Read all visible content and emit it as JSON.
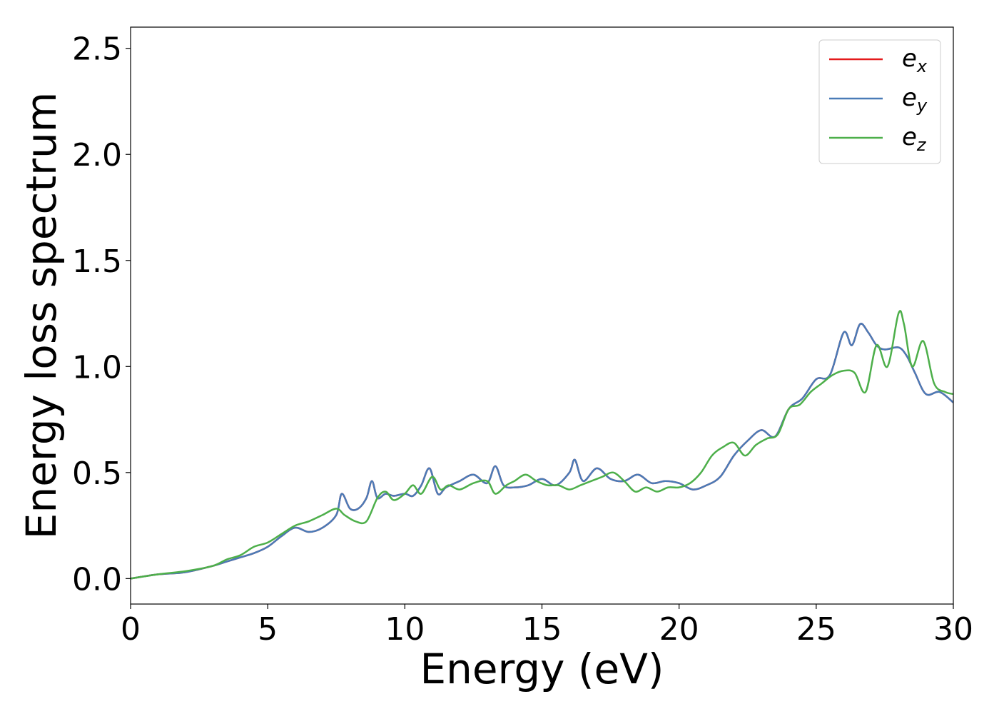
{
  "chart_data": {
    "type": "line",
    "xlabel": "Energy (eV)",
    "ylabel": "Energy loss spectrum",
    "xlim": [
      0,
      30
    ],
    "ylim": [
      -0.12,
      2.6
    ],
    "x_ticks": [
      "0",
      "5",
      "10",
      "15",
      "20",
      "25",
      "30"
    ],
    "y_ticks": [
      "0.0",
      "0.5",
      "1.0",
      "1.5",
      "2.0",
      "2.5"
    ],
    "grid": false,
    "legend_position": "top-right",
    "series": [
      {
        "name": "e",
        "name_subscript": "x",
        "color": "#e41a1c",
        "x": [
          0,
          1,
          2,
          3,
          3.5,
          4,
          4.5,
          5,
          5.5,
          6,
          6.5,
          7,
          7.5,
          7.7,
          8,
          8.3,
          8.6,
          8.8,
          9,
          9.3,
          9.6,
          10,
          10.3,
          10.6,
          10.9,
          11.2,
          11.5,
          12,
          12.5,
          13,
          13.3,
          13.6,
          14,
          14.5,
          15,
          15.5,
          16,
          16.2,
          16.5,
          17,
          17.5,
          18,
          18.5,
          19,
          19.5,
          20,
          20.5,
          21,
          21.5,
          22,
          22.5,
          23,
          23.5,
          24,
          24.5,
          25,
          25.5,
          26,
          26.3,
          26.6,
          26.9,
          27.2,
          27.5,
          28,
          28.3,
          28.6,
          29,
          29.5,
          30
        ],
        "y": [
          0,
          0.02,
          0.03,
          0.06,
          0.08,
          0.1,
          0.12,
          0.15,
          0.2,
          0.24,
          0.22,
          0.24,
          0.3,
          0.4,
          0.33,
          0.33,
          0.38,
          0.46,
          0.38,
          0.4,
          0.39,
          0.4,
          0.39,
          0.44,
          0.52,
          0.4,
          0.43,
          0.46,
          0.49,
          0.45,
          0.53,
          0.44,
          0.43,
          0.44,
          0.47,
          0.44,
          0.5,
          0.56,
          0.46,
          0.52,
          0.47,
          0.46,
          0.49,
          0.45,
          0.46,
          0.45,
          0.42,
          0.44,
          0.48,
          0.58,
          0.65,
          0.7,
          0.67,
          0.8,
          0.85,
          0.94,
          0.96,
          1.16,
          1.1,
          1.2,
          1.16,
          1.1,
          1.08,
          1.09,
          1.05,
          0.97,
          0.87,
          0.88,
          0.83
        ]
      },
      {
        "name": "e",
        "name_subscript": "y",
        "color": "#4a7bb7",
        "x": [
          0,
          1,
          2,
          3,
          3.5,
          4,
          4.5,
          5,
          5.5,
          6,
          6.5,
          7,
          7.5,
          7.7,
          8,
          8.3,
          8.6,
          8.8,
          9,
          9.3,
          9.6,
          10,
          10.3,
          10.6,
          10.9,
          11.2,
          11.5,
          12,
          12.5,
          13,
          13.3,
          13.6,
          14,
          14.5,
          15,
          15.5,
          16,
          16.2,
          16.5,
          17,
          17.5,
          18,
          18.5,
          19,
          19.5,
          20,
          20.5,
          21,
          21.5,
          22,
          22.5,
          23,
          23.5,
          24,
          24.5,
          25,
          25.5,
          26,
          26.3,
          26.6,
          26.9,
          27.2,
          27.5,
          28,
          28.3,
          28.6,
          29,
          29.5,
          30
        ],
        "y": [
          0,
          0.02,
          0.03,
          0.06,
          0.08,
          0.1,
          0.12,
          0.15,
          0.2,
          0.24,
          0.22,
          0.24,
          0.3,
          0.4,
          0.33,
          0.33,
          0.38,
          0.46,
          0.38,
          0.4,
          0.39,
          0.4,
          0.39,
          0.44,
          0.52,
          0.4,
          0.43,
          0.46,
          0.49,
          0.45,
          0.53,
          0.44,
          0.43,
          0.44,
          0.47,
          0.44,
          0.5,
          0.56,
          0.46,
          0.52,
          0.47,
          0.46,
          0.49,
          0.45,
          0.46,
          0.45,
          0.42,
          0.44,
          0.48,
          0.58,
          0.65,
          0.7,
          0.67,
          0.8,
          0.85,
          0.94,
          0.96,
          1.16,
          1.1,
          1.2,
          1.16,
          1.1,
          1.08,
          1.09,
          1.05,
          0.97,
          0.87,
          0.88,
          0.83
        ]
      },
      {
        "name": "e",
        "name_subscript": "z",
        "color": "#4daf4a",
        "x": [
          0,
          1,
          2,
          3,
          3.5,
          4,
          4.5,
          5,
          5.5,
          6,
          6.5,
          7,
          7.5,
          7.8,
          8.2,
          8.6,
          9,
          9.3,
          9.6,
          10,
          10.3,
          10.6,
          11,
          11.3,
          11.6,
          12,
          12.5,
          13,
          13.3,
          13.7,
          14,
          14.4,
          14.8,
          15.2,
          15.6,
          16,
          16.4,
          16.8,
          17.2,
          17.6,
          18,
          18.4,
          18.8,
          19.2,
          19.6,
          20,
          20.4,
          20.8,
          21.2,
          21.6,
          22,
          22.4,
          22.8,
          23.2,
          23.6,
          24,
          24.4,
          24.8,
          25.2,
          25.6,
          26,
          26.4,
          26.8,
          27.2,
          27.6,
          28,
          28.2,
          28.5,
          28.9,
          29.3,
          29.7,
          30
        ],
        "y": [
          0,
          0.02,
          0.035,
          0.06,
          0.09,
          0.11,
          0.15,
          0.17,
          0.21,
          0.25,
          0.27,
          0.3,
          0.33,
          0.3,
          0.27,
          0.27,
          0.38,
          0.41,
          0.37,
          0.4,
          0.44,
          0.4,
          0.48,
          0.42,
          0.44,
          0.42,
          0.45,
          0.46,
          0.4,
          0.44,
          0.46,
          0.49,
          0.46,
          0.44,
          0.44,
          0.42,
          0.44,
          0.46,
          0.48,
          0.5,
          0.46,
          0.41,
          0.43,
          0.41,
          0.43,
          0.43,
          0.45,
          0.5,
          0.58,
          0.62,
          0.64,
          0.58,
          0.63,
          0.66,
          0.68,
          0.8,
          0.82,
          0.88,
          0.92,
          0.96,
          0.98,
          0.97,
          0.88,
          1.1,
          1.0,
          1.25,
          1.2,
          1.0,
          1.12,
          0.92,
          0.88,
          0.87
        ]
      }
    ]
  }
}
